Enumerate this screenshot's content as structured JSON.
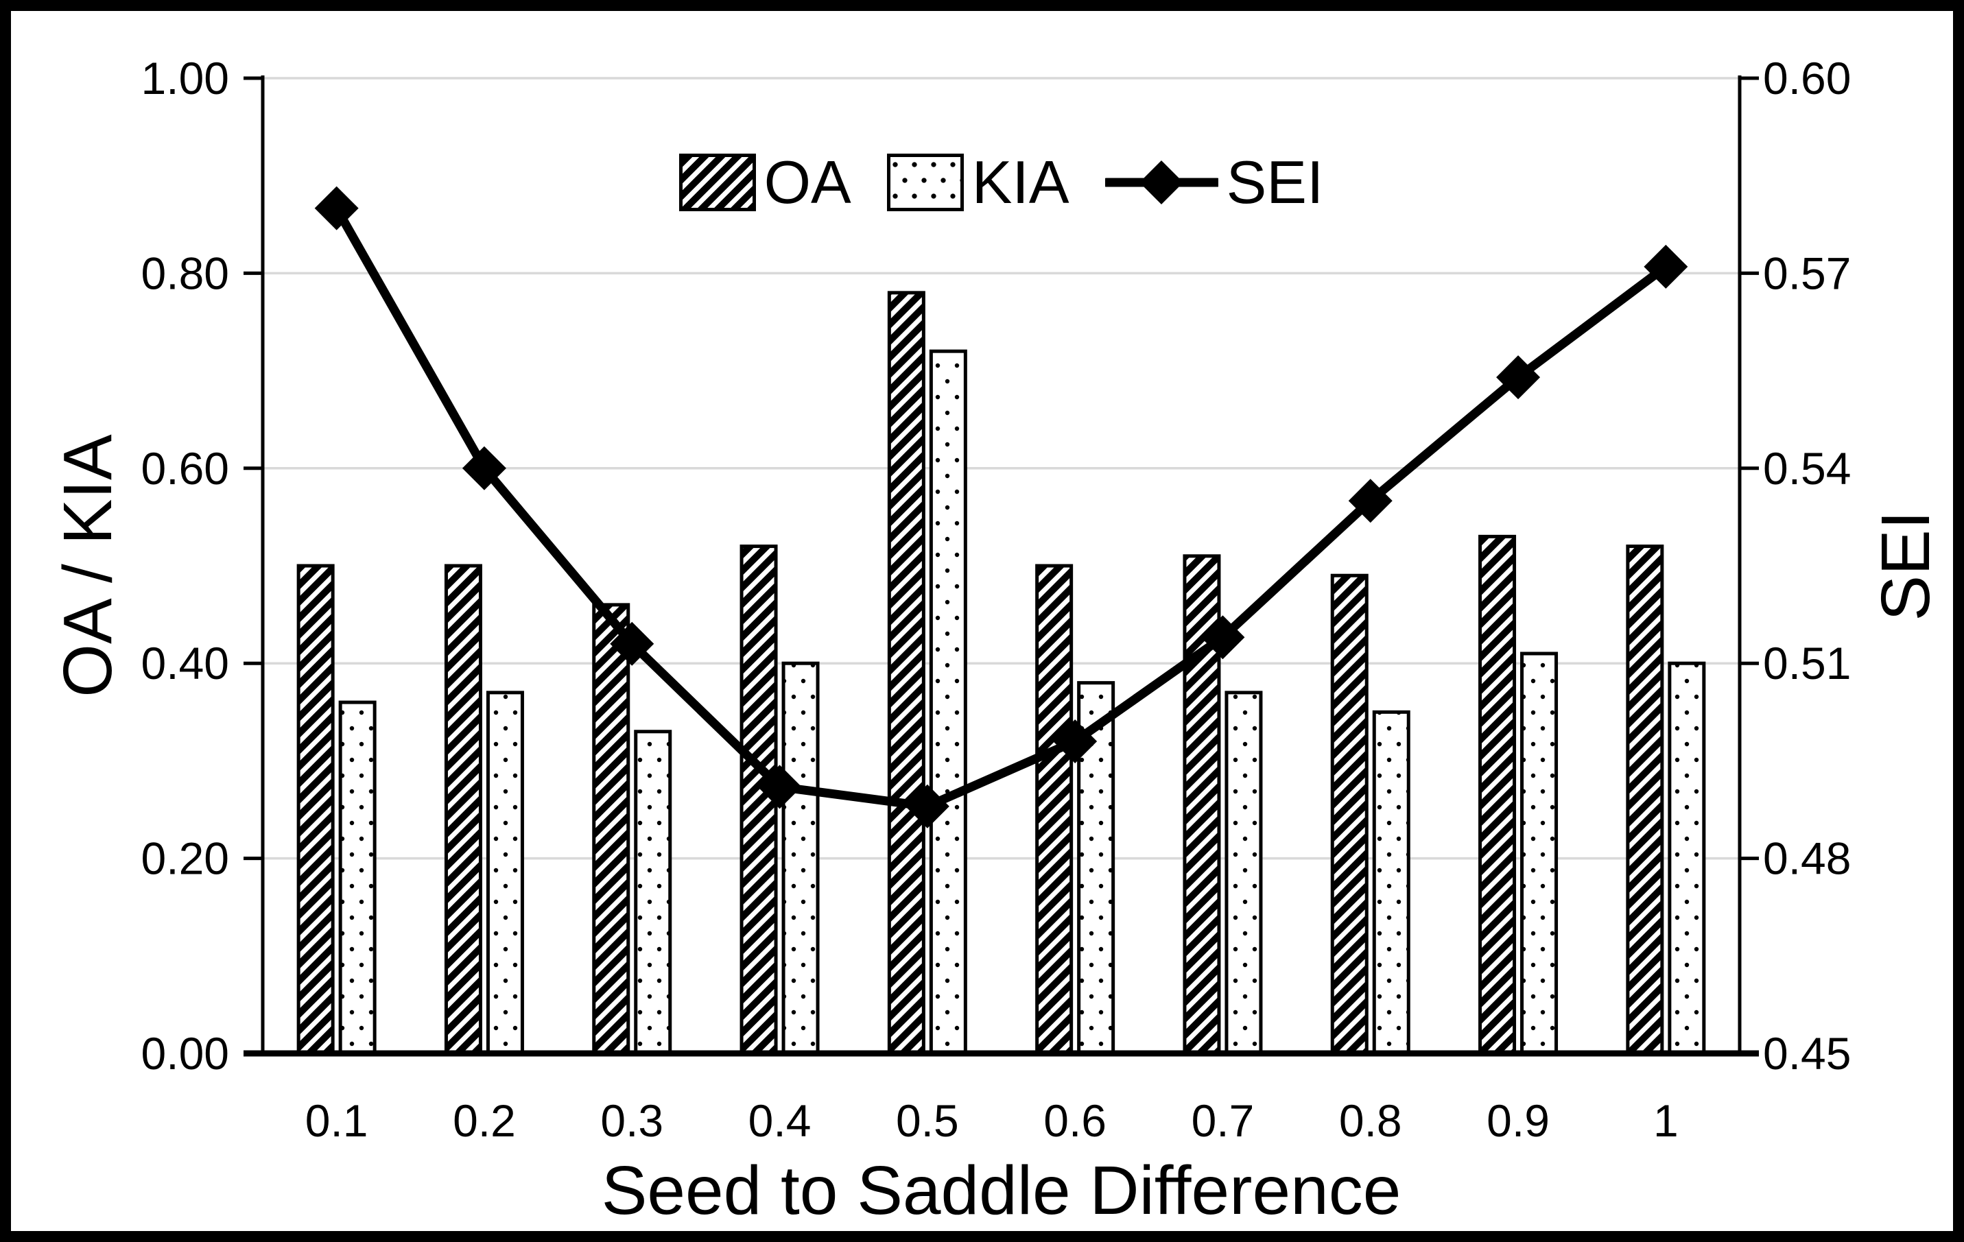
{
  "chart_data": {
    "type": "combo-bar-line",
    "categories": [
      "0.1",
      "0.2",
      "0.3",
      "0.4",
      "0.5",
      "0.6",
      "0.7",
      "0.8",
      "0.9",
      "1"
    ],
    "series": [
      {
        "name": "OA",
        "type": "bar",
        "axis": "left",
        "fill_pattern": "diagonal-hatch",
        "values": [
          0.5,
          0.5,
          0.46,
          0.52,
          0.78,
          0.5,
          0.51,
          0.49,
          0.53,
          0.52
        ]
      },
      {
        "name": "KIA",
        "type": "bar",
        "axis": "left",
        "fill_pattern": "dots",
        "values": [
          0.36,
          0.37,
          0.33,
          0.4,
          0.72,
          0.38,
          0.37,
          0.35,
          0.41,
          0.4
        ]
      },
      {
        "name": "SEI",
        "type": "line",
        "axis": "right",
        "marker": "diamond",
        "values": [
          0.58,
          0.54,
          0.513,
          0.491,
          0.488,
          0.498,
          0.514,
          0.535,
          0.554,
          0.571
        ]
      }
    ],
    "x_axis": {
      "label": "Seed to Saddle Difference",
      "tick_labels": [
        "0.1",
        "0.2",
        "0.3",
        "0.4",
        "0.5",
        "0.6",
        "0.7",
        "0.8",
        "0.9",
        "1"
      ]
    },
    "left_axis": {
      "label": "OA / KIA",
      "min": 0.0,
      "max": 1.0,
      "step": 0.2,
      "tick_labels": [
        "0.00",
        "0.20",
        "0.40",
        "0.60",
        "0.80",
        "1.00"
      ]
    },
    "right_axis": {
      "label": "SEI",
      "min": 0.45,
      "max": 0.6,
      "step": 0.03,
      "tick_labels": [
        "0.45",
        "0.48",
        "0.51",
        "0.54",
        "0.57",
        "0.60"
      ]
    },
    "legend": {
      "position": "top-center",
      "entries": [
        "OA",
        "KIA",
        "SEI"
      ]
    },
    "grid": {
      "horizontal": true,
      "vertical": false
    },
    "colors": {
      "foreground": "#000000",
      "gridline": "#d9d9d9",
      "background": "#ffffff",
      "border": "#000000"
    }
  }
}
